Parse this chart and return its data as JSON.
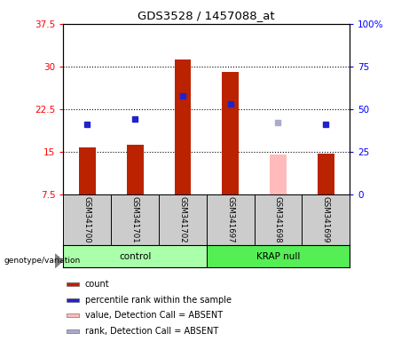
{
  "title": "GDS3528 / 1457088_at",
  "samples": [
    "GSM341700",
    "GSM341701",
    "GSM341702",
    "GSM341697",
    "GSM341698",
    "GSM341699"
  ],
  "red_values": [
    15.8,
    16.3,
    31.2,
    29.0,
    null,
    14.6
  ],
  "pink_values": [
    null,
    null,
    null,
    null,
    14.5,
    null
  ],
  "blue_values": [
    41,
    44,
    58,
    53,
    null,
    41
  ],
  "light_blue_values": [
    null,
    null,
    null,
    null,
    42,
    null
  ],
  "ylim_left": [
    7.5,
    37.5
  ],
  "ylim_right": [
    0,
    100
  ],
  "yticks_left": [
    7.5,
    15.0,
    22.5,
    30.0,
    37.5
  ],
  "yticks_right": [
    0,
    25,
    50,
    75,
    100
  ],
  "ytick_labels_left": [
    "7.5",
    "15",
    "22.5",
    "30",
    "37.5"
  ],
  "ytick_labels_right": [
    "0",
    "25",
    "50",
    "75",
    "100%"
  ],
  "bar_color_red": "#bb2200",
  "bar_color_pink": "#ffbbbb",
  "dot_color_blue": "#2222cc",
  "dot_color_light_blue": "#aaaacc",
  "group_color_control": "#aaffaa",
  "group_color_krap": "#55ee55",
  "bg_color": "#ffffff",
  "plot_bg": "#ffffff",
  "label_bg": "#cccccc",
  "genotype_label": "genotype/variation",
  "legend_items": [
    {
      "label": "count",
      "color": "#bb2200"
    },
    {
      "label": "percentile rank within the sample",
      "color": "#2222cc"
    },
    {
      "label": "value, Detection Call = ABSENT",
      "color": "#ffbbbb"
    },
    {
      "label": "rank, Detection Call = ABSENT",
      "color": "#aaaacc"
    }
  ]
}
